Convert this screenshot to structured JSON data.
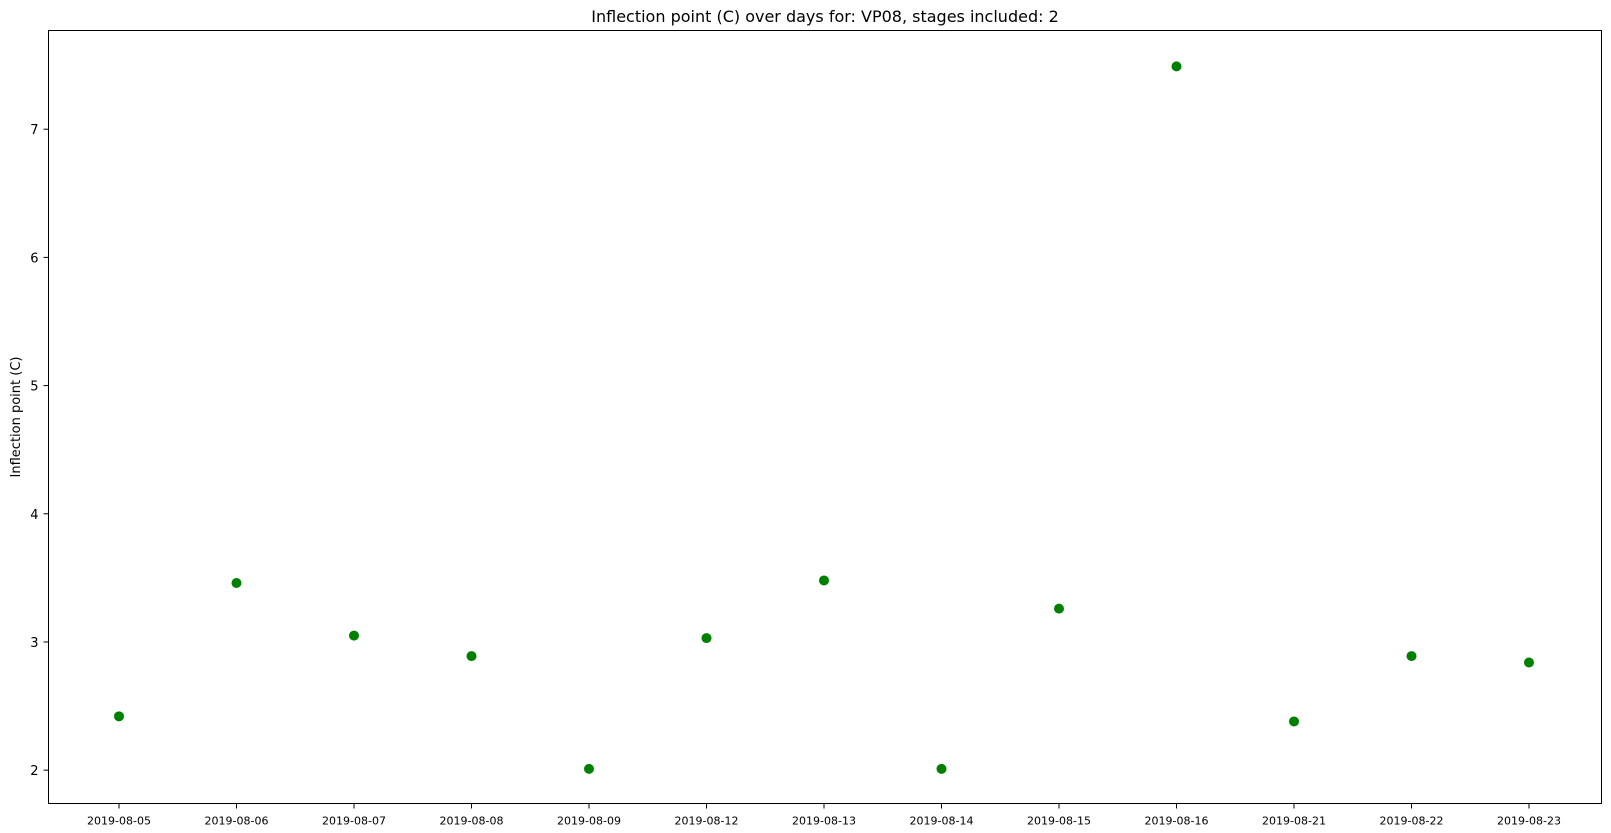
{
  "chart_data": {
    "type": "scatter",
    "title": "Inflection point (C) over days for: VP08, stages included: 2",
    "xlabel": "",
    "ylabel": "Inflection point (C)",
    "categories": [
      "2019-08-05",
      "2019-08-06",
      "2019-08-07",
      "2019-08-08",
      "2019-08-09",
      "2019-08-12",
      "2019-08-13",
      "2019-08-14",
      "2019-08-15",
      "2019-08-16",
      "2019-08-21",
      "2019-08-22",
      "2019-08-23"
    ],
    "values": [
      2.42,
      3.46,
      3.05,
      2.89,
      2.01,
      3.03,
      3.48,
      2.01,
      3.26,
      7.49,
      2.38,
      2.89,
      2.84
    ],
    "ylim": [
      1.74,
      7.77
    ],
    "yticks": [
      2,
      3,
      4,
      5,
      6,
      7
    ],
    "grid": false,
    "marker_color": "#008000"
  }
}
